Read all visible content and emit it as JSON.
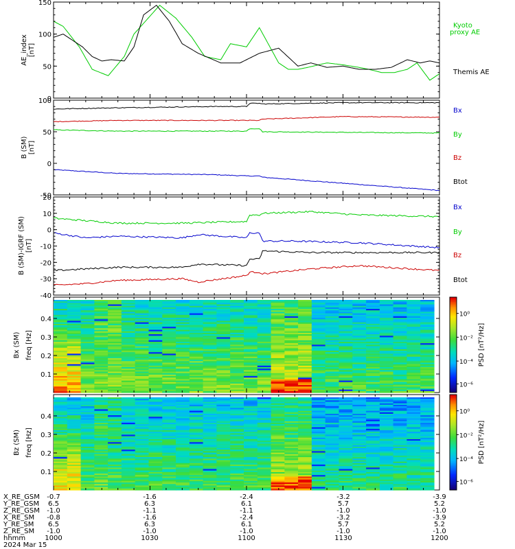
{
  "chart_data": [
    {
      "type": "line",
      "ylabel": "AE_index [nT]",
      "ylim": [
        0,
        150
      ],
      "yticks": [
        "0",
        "50",
        "100",
        "150"
      ],
      "x_range": [
        "10:00",
        "12:00"
      ],
      "series": [
        {
          "name": "Kyoto proxy AE",
          "color": "#00cc00",
          "x": [
            0,
            3,
            8,
            12,
            17,
            22,
            25,
            33,
            38,
            43,
            47,
            52,
            55,
            60,
            64,
            70,
            73,
            76,
            79,
            85,
            90,
            95,
            98,
            102,
            106,
            110,
            113,
            117,
            120
          ],
          "y": [
            120,
            112,
            80,
            45,
            35,
            65,
            100,
            145,
            125,
            95,
            65,
            60,
            85,
            80,
            110,
            55,
            45,
            45,
            48,
            55,
            52,
            48,
            45,
            40,
            40,
            45,
            55,
            28,
            38
          ]
        },
        {
          "name": "Themis AE",
          "color": "#000000",
          "x": [
            0,
            3,
            6,
            9,
            12,
            15,
            18,
            22,
            25,
            28,
            32,
            36,
            40,
            45,
            52,
            58,
            64,
            70,
            76,
            80,
            85,
            90,
            95,
            100,
            105,
            110,
            114,
            117,
            120
          ],
          "y": [
            95,
            100,
            90,
            80,
            65,
            58,
            60,
            58,
            80,
            130,
            145,
            120,
            85,
            70,
            55,
            55,
            70,
            78,
            50,
            55,
            48,
            50,
            45,
            45,
            48,
            60,
            55,
            58,
            55
          ]
        }
      ]
    },
    {
      "type": "line",
      "ylabel": "B (SM) [nT]",
      "ylim": [
        -50,
        100
      ],
      "yticks": [
        "-50",
        "0",
        "50",
        "100"
      ],
      "series": [
        {
          "name": "Bx",
          "color": "#0000cc",
          "x": [
            0,
            20,
            50,
            60,
            61,
            64,
            65,
            120
          ],
          "y": [
            -10,
            -16,
            -18,
            -20,
            -20,
            -20,
            -22,
            -43
          ]
        },
        {
          "name": "By",
          "color": "#00cc00",
          "x": [
            0,
            20,
            50,
            60,
            61,
            64,
            65,
            120
          ],
          "y": [
            53,
            51,
            51,
            51,
            55,
            55,
            50,
            48
          ]
        },
        {
          "name": "Bz",
          "color": "#cc0000",
          "x": [
            0,
            20,
            50,
            60,
            61,
            64,
            65,
            90,
            120
          ],
          "y": [
            66,
            68,
            68,
            68,
            68,
            68,
            70,
            74,
            73
          ]
        },
        {
          "name": "Btot",
          "color": "#000000",
          "x": [
            0,
            20,
            50,
            60,
            61,
            64,
            65,
            90,
            120
          ],
          "y": [
            86,
            88,
            90,
            90,
            95,
            95,
            94,
            96,
            96
          ]
        }
      ]
    },
    {
      "type": "line",
      "ylabel": "B (SM)-IGRF (SM) [nT]",
      "ylim": [
        -40,
        20
      ],
      "yticks": [
        "-40",
        "-30",
        "-20",
        "-10",
        "0",
        "10",
        "20"
      ],
      "series": [
        {
          "name": "Bx",
          "color": "#0000cc",
          "x": [
            0,
            10,
            20,
            40,
            45,
            60,
            61,
            64,
            65,
            75,
            95,
            120
          ],
          "y": [
            -2,
            -5,
            -4,
            -5,
            -3,
            -5,
            -2,
            -2,
            -7,
            -7,
            -8,
            -11
          ]
        },
        {
          "name": "By",
          "color": "#00cc00",
          "x": [
            0,
            20,
            40,
            60,
            61,
            64,
            65,
            80,
            95,
            120
          ],
          "y": [
            7,
            4,
            4,
            5,
            9,
            9,
            10,
            11,
            9,
            8
          ]
        },
        {
          "name": "Bz",
          "color": "#cc0000",
          "x": [
            0,
            10,
            20,
            40,
            45,
            60,
            61,
            64,
            65,
            80,
            95,
            120
          ],
          "y": [
            -34,
            -33,
            -31,
            -30,
            -32,
            -28,
            -26,
            -26,
            -27,
            -24,
            -22,
            -25
          ]
        },
        {
          "name": "Btot",
          "color": "#000000",
          "x": [
            0,
            10,
            20,
            40,
            45,
            60,
            61,
            64,
            65,
            80,
            95,
            120
          ],
          "y": [
            -25,
            -24,
            -23,
            -23,
            -21,
            -22,
            -18,
            -18,
            -13,
            -14,
            -14,
            -14
          ]
        }
      ]
    },
    {
      "type": "heatmap",
      "ylabel": "Bx (SM) freq [Hz]",
      "yticks": [
        "0.1",
        "0.2",
        "0.3",
        "0.4"
      ],
      "ylim": [
        0,
        0.5
      ],
      "colorbar_label": "PSD [nT²/Hz]",
      "colorbar_ticks": [
        "10⁰",
        "10⁻²",
        "10⁻⁴",
        "10⁻⁶"
      ]
    },
    {
      "type": "heatmap",
      "ylabel": "Bz (SM) freq [Hz]",
      "yticks": [
        "0.1",
        "0.2",
        "0.3",
        "0.4"
      ],
      "ylim": [
        0,
        0.5
      ],
      "colorbar_label": "PSD [nT²/Hz]",
      "colorbar_ticks": [
        "10⁰",
        "10⁻²",
        "10⁻⁴",
        "10⁻⁶"
      ]
    }
  ],
  "panel1_legend": {
    "kyoto_line1": "Kyoto",
    "kyoto_line2": "proxy AE",
    "themis": "Themis AE"
  },
  "panel1_ylabel": {
    "main": "AE_index",
    "unit": "[nT]"
  },
  "panel2_ylabel": {
    "main": "B (SM)",
    "unit": "[nT]"
  },
  "panel3_ylabel": {
    "main": "B (SM)-IGRF (SM)",
    "unit": "[nT]"
  },
  "panel4_ylabel": {
    "main": "Bx (SM)",
    "unit": "freq [Hz]"
  },
  "panel5_ylabel": {
    "main": "Bz (SM)",
    "unit": "freq [Hz]"
  },
  "colorbar_label": "PSD [nT²/Hz]",
  "field_legend": [
    "Bx",
    "By",
    "Bz",
    "Btot"
  ],
  "field_legend_colors": [
    "#0000cc",
    "#00cc00",
    "#cc0000",
    "#000000"
  ],
  "panel2_yticks": [
    "100",
    "50",
    "0",
    "-50"
  ],
  "panel3_yticks": [
    "20",
    "10",
    "0",
    "-10",
    "-20",
    "-30",
    "-40"
  ],
  "colorbar_ticks": [
    "10⁰",
    "10⁻²",
    "10⁻⁴",
    "10⁻⁶"
  ],
  "ephemeris": {
    "labels": [
      "X_RE_GSM",
      "Y_RE_GSM",
      "Z_RE_GSM",
      "X_RE_SM",
      "Y_RE_SM",
      "Z_RE_SM",
      "hhmm"
    ],
    "rows": [
      [
        "-0.7",
        "-1.6",
        "-2.4",
        "-3.2",
        "-3.9"
      ],
      [
        "6.5",
        "6.3",
        "6.1",
        "5.7",
        "5.2"
      ],
      [
        "-1.0",
        "-1.1",
        "-1.1",
        "-1.0",
        "-1.0"
      ],
      [
        "-0.8",
        "-1.6",
        "-2.4",
        "-3.2",
        "-3.9"
      ],
      [
        "6.5",
        "6.3",
        "6.1",
        "5.7",
        "5.2"
      ],
      [
        "-1.0",
        "-1.0",
        "-1.0",
        "-1.0",
        "-1.0"
      ],
      [
        "1000",
        "1030",
        "1100",
        "1130",
        "1200"
      ]
    ],
    "date": "2024 Mar 15"
  }
}
